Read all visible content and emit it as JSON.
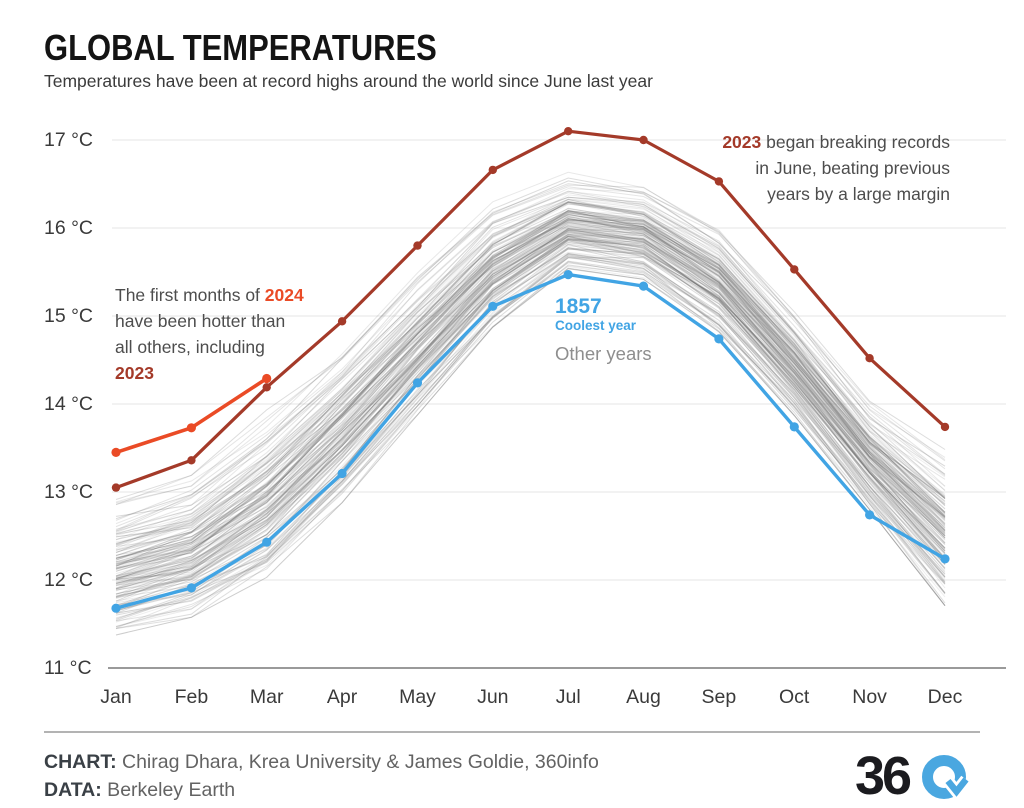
{
  "header": {
    "title": "GLOBAL TEMPERATURES",
    "subtitle": "Temperatures have been at record highs around the world since June last year"
  },
  "chart_data": {
    "type": "line",
    "title": "GLOBAL TEMPERATURES",
    "x_labels": [
      "Jan",
      "Feb",
      "Mar",
      "Apr",
      "May",
      "Jun",
      "Jul",
      "Aug",
      "Sep",
      "Oct",
      "Nov",
      "Dec"
    ],
    "y_tick_labels": [
      "17 °C",
      "16 °C",
      "15 °C",
      "14 °C",
      "13 °C",
      "12 °C",
      "11 °C"
    ],
    "y_unit": "°C",
    "ylim": [
      11,
      17.3
    ],
    "grid": "horizontal",
    "legend_position": "inline-annotations",
    "series": [
      {
        "name": "2023",
        "role": "record-year",
        "color": "#a43a29",
        "values": [
          13.05,
          13.36,
          14.19,
          14.94,
          15.8,
          16.66,
          17.1,
          17.0,
          16.53,
          15.53,
          14.52,
          13.74
        ]
      },
      {
        "name": "2024",
        "role": "current-year-partial",
        "color": "#ea4b26",
        "values": [
          13.45,
          13.73,
          14.29
        ]
      },
      {
        "name": "1857",
        "role": "coolest-year",
        "color": "#41a4e4",
        "values": [
          11.68,
          11.91,
          12.43,
          13.21,
          14.24,
          15.11,
          15.47,
          15.34,
          14.74,
          13.74,
          12.74,
          12.24
        ]
      }
    ],
    "other_years": {
      "label": "Other years",
      "color": "#6b6b6b",
      "band_min": [
        11.35,
        11.55,
        12.0,
        12.85,
        13.85,
        14.85,
        15.52,
        15.4,
        14.8,
        13.85,
        12.78,
        11.68
      ],
      "band_max": [
        13.0,
        13.28,
        13.98,
        14.75,
        15.58,
        16.35,
        16.65,
        16.55,
        16.08,
        15.12,
        14.1,
        13.55
      ],
      "line_count": 155
    }
  },
  "callout_2023": {
    "year": "2023",
    "line1": " began breaking records",
    "line2": "in June, beating previous",
    "line3": "years by a large margin"
  },
  "callout_2024": {
    "line1_pre": "The first months of ",
    "year": "2024",
    "line2": "have been hotter than",
    "line3": "all others, including",
    "year_2023": "2023"
  },
  "legend": {
    "year": "1857",
    "sublabel": "Coolest year",
    "other_label": "Other years"
  },
  "footer": {
    "chart_label": "CHART:",
    "chart_credit": " Chirag Dhara, Krea University & James Goldie, 360info",
    "data_label": "DATA:",
    "data_credit": " Berkeley Earth",
    "logo_text": "36"
  }
}
